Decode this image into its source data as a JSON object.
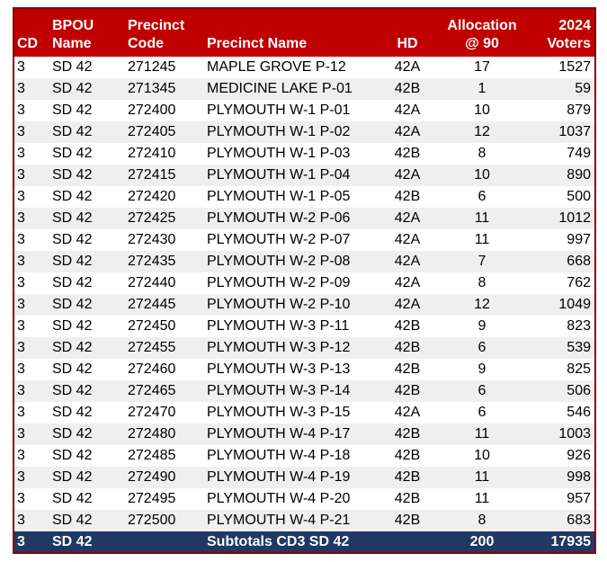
{
  "colors": {
    "header_bg": "#C00000",
    "header_text": "#FFFFFF",
    "border": "#8B0000",
    "stripe": "#EFEFEF",
    "row_bg": "#FFFFFF",
    "subtotal_bg": "#1F3864",
    "subtotal_text": "#FFFFFF",
    "body_text": "#000000"
  },
  "table": {
    "columns": [
      {
        "key": "cd",
        "line1": "",
        "line2": "CD",
        "align": "left"
      },
      {
        "key": "bpou-name",
        "line1": "BPOU",
        "line2": "Name",
        "align": "left"
      },
      {
        "key": "precinct-code",
        "line1": "Precinct",
        "line2": "Code",
        "align": "left"
      },
      {
        "key": "precinct-name",
        "line1": "",
        "line2": "Precinct Name",
        "align": "left"
      },
      {
        "key": "hd",
        "line1": "",
        "line2": "HD",
        "align": "center"
      },
      {
        "key": "allocation",
        "line1": "Allocation",
        "line2": "@ 90",
        "align": "center"
      },
      {
        "key": "voters-2024",
        "line1": "2024",
        "line2": "Voters",
        "align": "right"
      }
    ],
    "rows": [
      [
        "3",
        "SD 42",
        "271245",
        "MAPLE GROVE P-12",
        "42A",
        "17",
        "1527"
      ],
      [
        "3",
        "SD 42",
        "271345",
        "MEDICINE LAKE P-01",
        "42B",
        "1",
        "59"
      ],
      [
        "3",
        "SD 42",
        "272400",
        "PLYMOUTH W-1 P-01",
        "42A",
        "10",
        "879"
      ],
      [
        "3",
        "SD 42",
        "272405",
        "PLYMOUTH W-1 P-02",
        "42A",
        "12",
        "1037"
      ],
      [
        "3",
        "SD 42",
        "272410",
        "PLYMOUTH W-1 P-03",
        "42B",
        "8",
        "749"
      ],
      [
        "3",
        "SD 42",
        "272415",
        "PLYMOUTH W-1 P-04",
        "42A",
        "10",
        "890"
      ],
      [
        "3",
        "SD 42",
        "272420",
        "PLYMOUTH W-1 P-05",
        "42B",
        "6",
        "500"
      ],
      [
        "3",
        "SD 42",
        "272425",
        "PLYMOUTH W-2 P-06",
        "42A",
        "11",
        "1012"
      ],
      [
        "3",
        "SD 42",
        "272430",
        "PLYMOUTH W-2 P-07",
        "42A",
        "11",
        "997"
      ],
      [
        "3",
        "SD 42",
        "272435",
        "PLYMOUTH W-2 P-08",
        "42A",
        "7",
        "668"
      ],
      [
        "3",
        "SD 42",
        "272440",
        "PLYMOUTH W-2 P-09",
        "42A",
        "8",
        "762"
      ],
      [
        "3",
        "SD 42",
        "272445",
        "PLYMOUTH W-2 P-10",
        "42A",
        "12",
        "1049"
      ],
      [
        "3",
        "SD 42",
        "272450",
        "PLYMOUTH W-3 P-11",
        "42B",
        "9",
        "823"
      ],
      [
        "3",
        "SD 42",
        "272455",
        "PLYMOUTH W-3 P-12",
        "42B",
        "6",
        "539"
      ],
      [
        "3",
        "SD 42",
        "272460",
        "PLYMOUTH W-3 P-13",
        "42B",
        "9",
        "825"
      ],
      [
        "3",
        "SD 42",
        "272465",
        "PLYMOUTH W-3 P-14",
        "42B",
        "6",
        "506"
      ],
      [
        "3",
        "SD 42",
        "272470",
        "PLYMOUTH W-3 P-15",
        "42A",
        "6",
        "546"
      ],
      [
        "3",
        "SD 42",
        "272480",
        "PLYMOUTH W-4 P-17",
        "42B",
        "11",
        "1003"
      ],
      [
        "3",
        "SD 42",
        "272485",
        "PLYMOUTH W-4 P-18",
        "42B",
        "10",
        "926"
      ],
      [
        "3",
        "SD 42",
        "272490",
        "PLYMOUTH W-4 P-19",
        "42B",
        "11",
        "998"
      ],
      [
        "3",
        "SD 42",
        "272495",
        "PLYMOUTH W-4 P-20",
        "42B",
        "11",
        "957"
      ],
      [
        "3",
        "SD 42",
        "272500",
        "PLYMOUTH W-4 P-21",
        "42B",
        "8",
        "683"
      ]
    ],
    "subtotal": [
      "3",
      "SD 42",
      "",
      "Subtotals CD3 SD 42",
      "",
      "200",
      "17935"
    ]
  }
}
